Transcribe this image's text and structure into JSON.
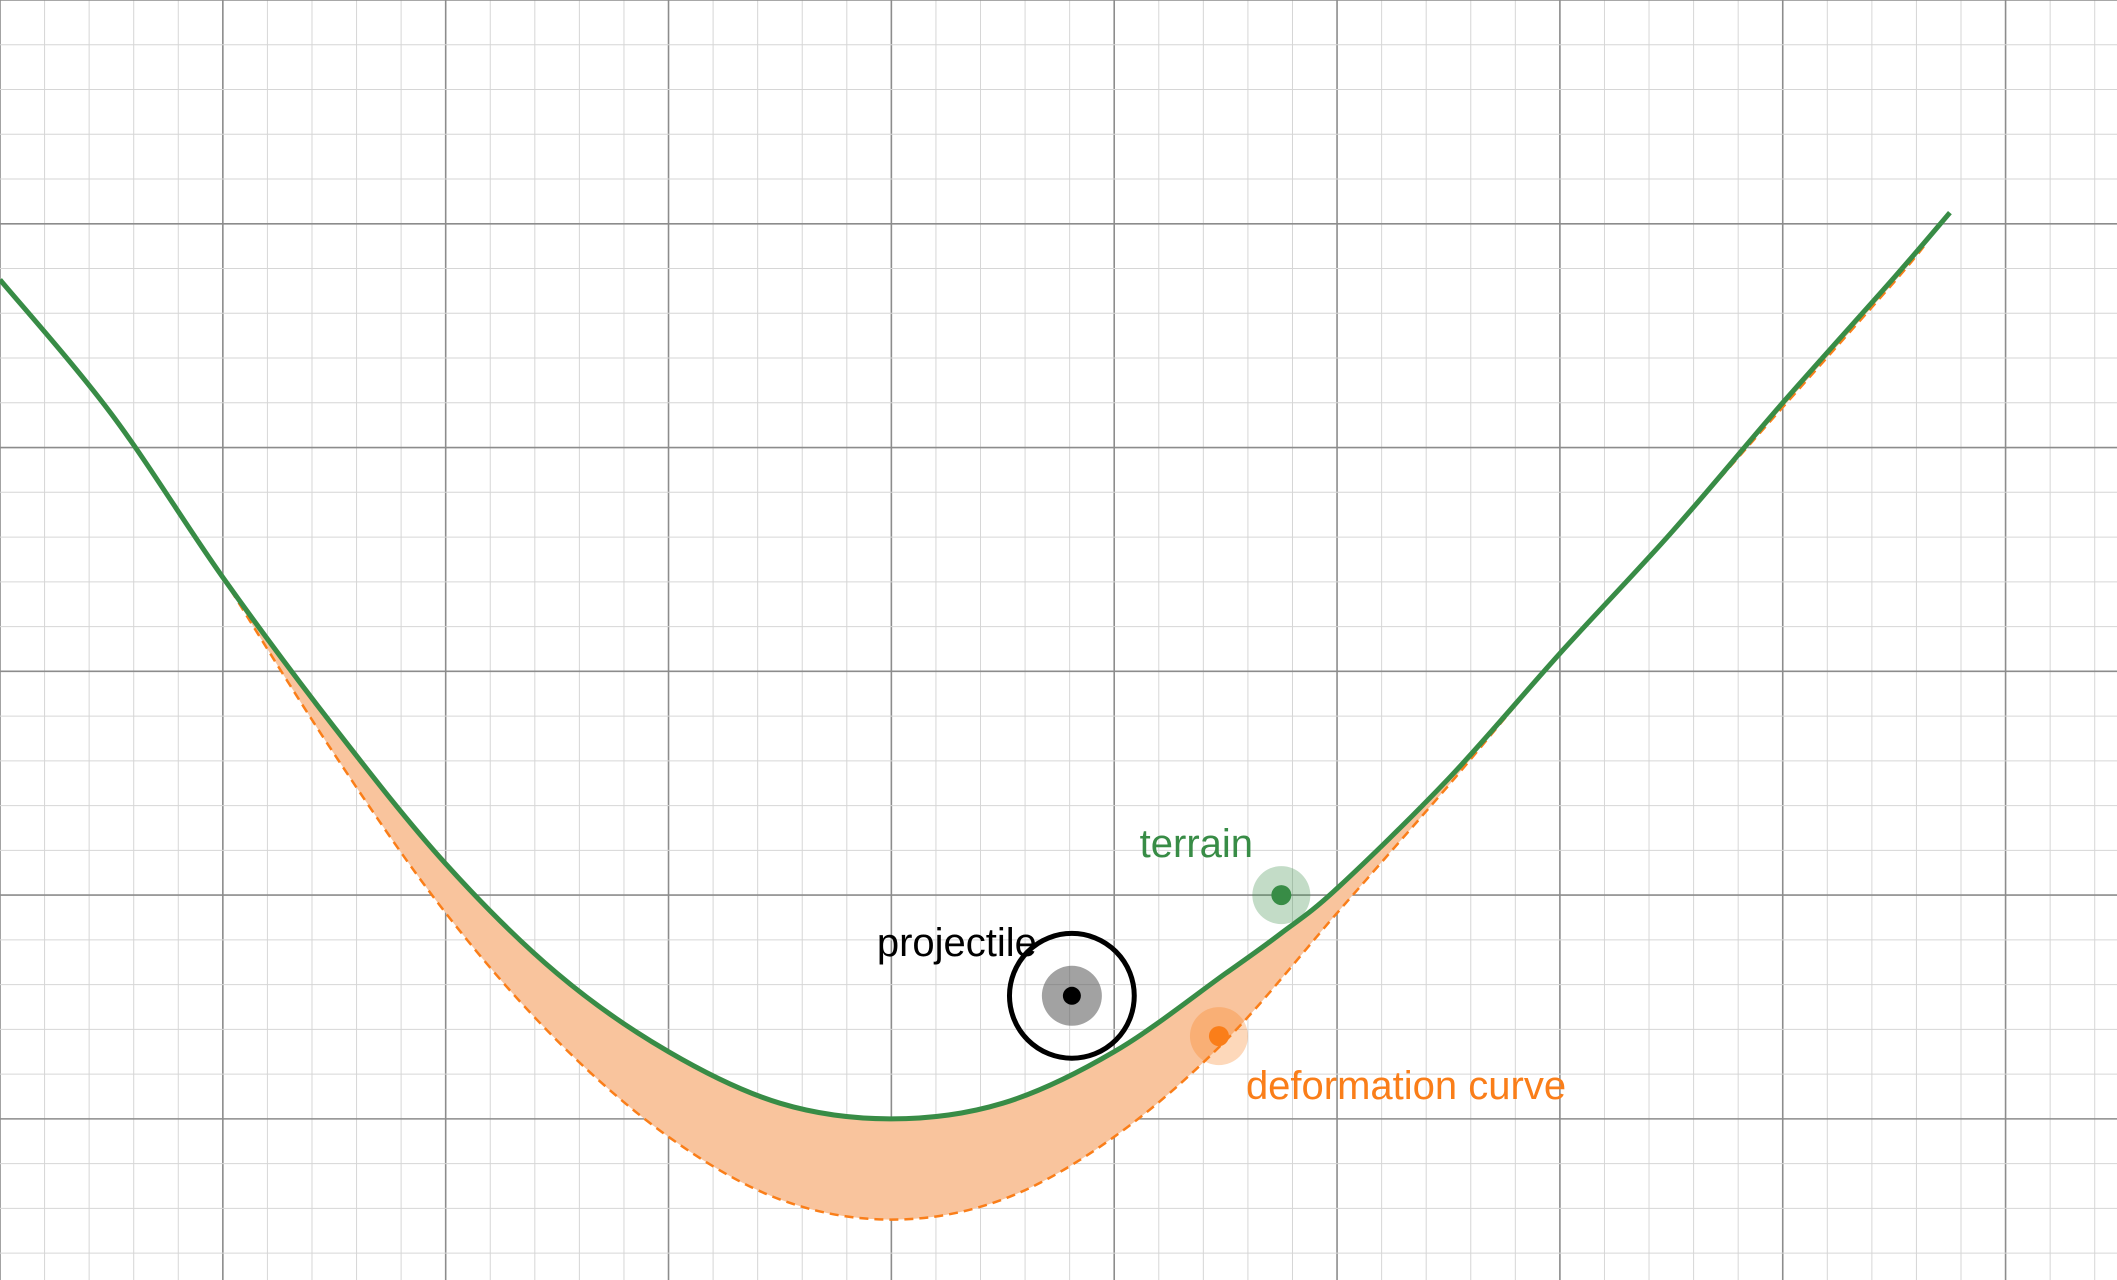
{
  "colors": {
    "terrain": "#388c46",
    "deformation": "#fa7e19",
    "deformation_fill": "#f9c49d",
    "projectile": "#000000",
    "grid_minor": "#d6d6d6",
    "grid_major": "#8c8c8c"
  },
  "labels": {
    "terrain": "terrain",
    "projectile": "projectile",
    "deformation": "deformation curve"
  },
  "chart_data": {
    "type": "line",
    "grid": true,
    "xlim": [
      -4,
      5.5
    ],
    "ylim": [
      -0.72,
      5
    ],
    "series": [
      {
        "name": "terrain",
        "style": "solid",
        "x": [
          -4,
          -3.5,
          -3,
          -2.5,
          -2,
          -1.5,
          -1,
          -0.5,
          0,
          0.5,
          1,
          1.5,
          1.75,
          2,
          2.5,
          3,
          3.5,
          4,
          4.5,
          4.75
        ],
        "y": [
          3.75,
          3.15,
          2.42,
          1.75,
          1.14,
          0.65,
          0.3,
          0.07,
          0,
          0.07,
          0.3,
          0.65,
          0.83,
          1.03,
          1.52,
          2.08,
          2.62,
          3.2,
          3.76,
          4.05
        ]
      },
      {
        "name": "deformation curve",
        "style": "dashed",
        "x": [
          -3,
          -2.5,
          -2,
          -1.5,
          -1,
          -0.5,
          0,
          0.5,
          1,
          1.5,
          2,
          2.5,
          3,
          3.5,
          4,
          4.5,
          4.65
        ],
        "y": [
          2.42,
          1.63,
          0.92,
          0.35,
          -0.08,
          -0.36,
          -0.45,
          -0.36,
          -0.08,
          0.35,
          0.92,
          1.49,
          2.08,
          2.62,
          3.18,
          3.74,
          3.92
        ]
      }
    ],
    "points": [
      {
        "name": "terrain",
        "x": 1.75,
        "y": 1.0
      },
      {
        "name": "deformation curve",
        "x": 1.47,
        "y": 0.37
      },
      {
        "name": "projectile",
        "x": 0.81,
        "y": 0.55,
        "radius": 0.28
      }
    ]
  }
}
